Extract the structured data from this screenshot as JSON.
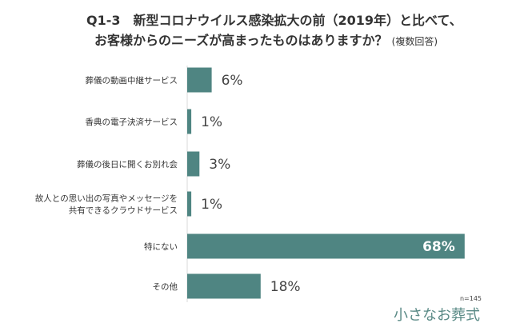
{
  "chart_data": {
    "type": "bar",
    "orientation": "horizontal",
    "title_line1": "Q1-3　新型コロナウイルス感染拡大の前（2019年）と比べて、",
    "title_line2": "お客様からのニーズが高まったものはありますか？",
    "title_note": "(複数回答)",
    "categories": [
      [
        "葬儀の動画中継サービス"
      ],
      [
        "香典の電子決済サービス"
      ],
      [
        "葬儀の後日に開くお別れ会"
      ],
      [
        "故人との思い出の写真やメッセージを",
        "共有できるクラウドサービス"
      ],
      [
        "特にない"
      ],
      [
        "その他"
      ]
    ],
    "values": [
      6,
      1,
      3,
      1,
      68,
      18
    ],
    "value_labels": [
      "6%",
      "1%",
      "3%",
      "1%",
      "68%",
      "18%"
    ],
    "xlim": [
      0,
      70
    ],
    "unit": "%",
    "grid": false,
    "bar_color": "#4f8582",
    "sample_size": "n=145"
  },
  "branding": {
    "logo_text": "小さなお葬式",
    "logo_color": "#5a8a86"
  }
}
